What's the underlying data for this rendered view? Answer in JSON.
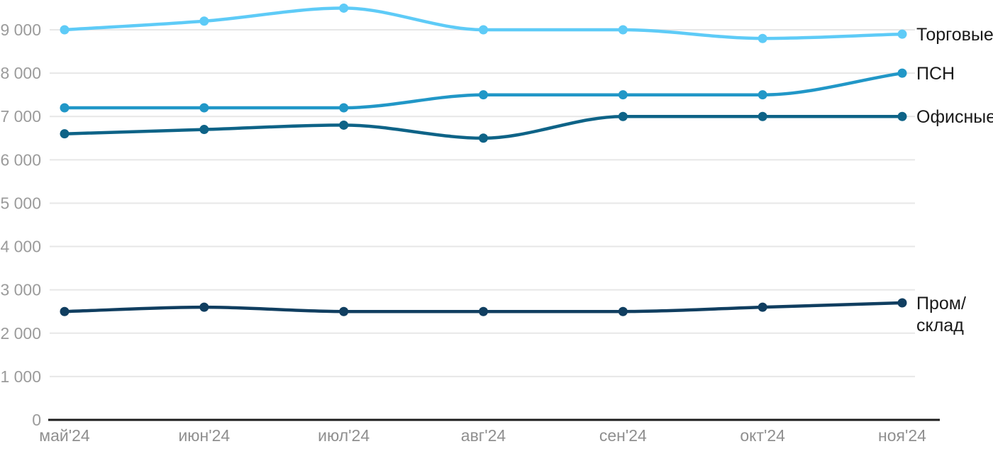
{
  "chart_data": {
    "type": "line",
    "title": "",
    "xlabel": "",
    "ylabel": "",
    "categories": [
      "май'24",
      "июн'24",
      "июл'24",
      "авг'24",
      "сен'24",
      "окт'24",
      "ноя'24"
    ],
    "series": [
      {
        "name": "Торговые",
        "label_lines": [
          "Торговые"
        ],
        "color": "#5ecbf7",
        "values": [
          9000,
          9200,
          9500,
          9000,
          9000,
          8800,
          8900
        ]
      },
      {
        "name": "ПСН",
        "label_lines": [
          "ПСН"
        ],
        "color": "#2197c7",
        "values": [
          7200,
          7200,
          7200,
          7500,
          7500,
          7500,
          8000
        ]
      },
      {
        "name": "Офисные",
        "label_lines": [
          "Офисные"
        ],
        "color": "#0e6387",
        "values": [
          6600,
          6700,
          6800,
          6500,
          7000,
          7000,
          7000
        ]
      },
      {
        "name": "Пром/склад",
        "label_lines": [
          "Пром/",
          "склад"
        ],
        "color": "#103e60",
        "values": [
          2500,
          2600,
          2500,
          2500,
          2500,
          2600,
          2700
        ]
      }
    ],
    "y_ticks": [
      {
        "value": 0,
        "label": "0"
      },
      {
        "value": 1000,
        "label": "1 000"
      },
      {
        "value": 2000,
        "label": "2 000"
      },
      {
        "value": 3000,
        "label": "3 000"
      },
      {
        "value": 4000,
        "label": "4 000"
      },
      {
        "value": 5000,
        "label": "5 000"
      },
      {
        "value": 6000,
        "label": "6 000"
      },
      {
        "value": 7000,
        "label": "7 000"
      },
      {
        "value": 8000,
        "label": "8 000"
      },
      {
        "value": 9000,
        "label": "9 000"
      }
    ],
    "ylim": [
      0,
      9800
    ],
    "grid": true,
    "curve": "monotone",
    "legend_position": "end-of-line"
  },
  "style": {
    "background": "#ffffff",
    "grid_color": "#e7e7e7",
    "axis_color": "#1c1c1c",
    "y_tick_label_color": "#9b9b9b",
    "x_tick_label_color": "#8f8f8f",
    "series_label_color": "#1a1a1a"
  }
}
